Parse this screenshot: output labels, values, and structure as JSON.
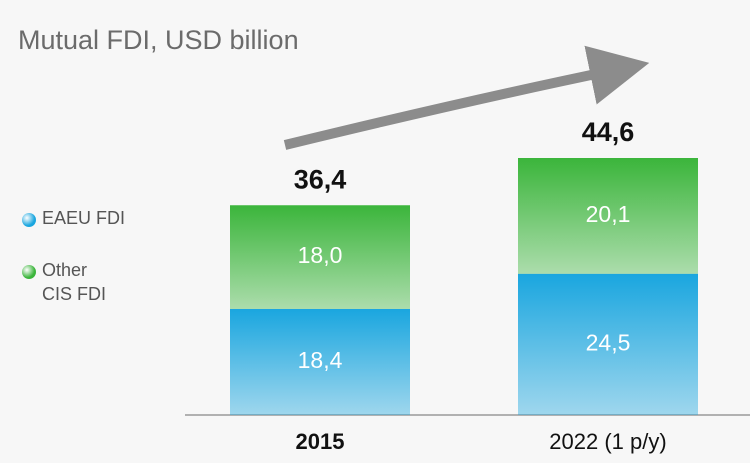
{
  "chart_data": {
    "type": "stacked_bar",
    "title": "Mutual FDI, USD billion",
    "categories": [
      "2015",
      "2022 (1 p/y)"
    ],
    "series": [
      {
        "name": "EAEU FDI",
        "color": "#1aa6df",
        "values": [
          18.4,
          24.5
        ],
        "value_labels": [
          "18,4",
          "24,5"
        ]
      },
      {
        "name": "Other CIS FDI",
        "color": "#3bb53b",
        "values": [
          18.0,
          20.1
        ],
        "value_labels": [
          "18,0",
          "20,1"
        ]
      }
    ],
    "totals": [
      36.4,
      44.6
    ],
    "total_labels": [
      "36,4",
      "44,6"
    ]
  }
}
